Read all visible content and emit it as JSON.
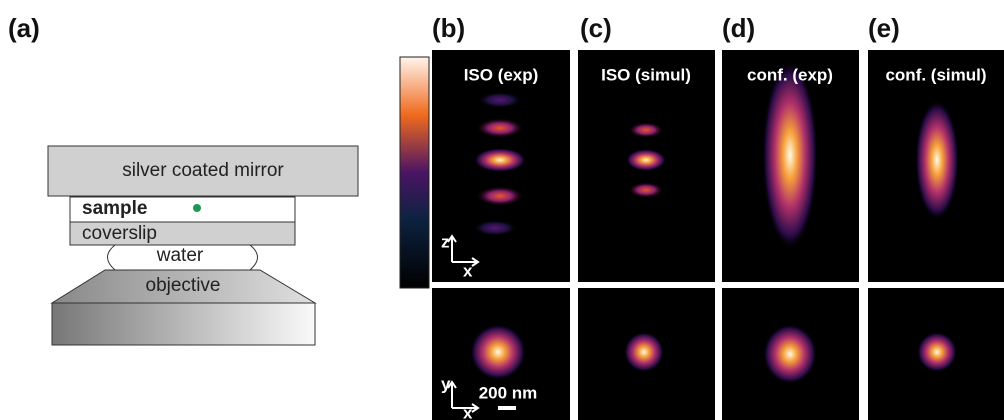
{
  "panels": {
    "labels": [
      "(a)",
      "(b)",
      "(c)",
      "(d)",
      "(e)"
    ],
    "titles": [
      "ISO (exp)",
      "ISO (simul)",
      "conf. (exp)",
      "conf. (simul)"
    ]
  },
  "diagram": {
    "mirror": "silver coated mirror",
    "sample": "sample",
    "coverslip": "coverslip",
    "water": "water",
    "objective": "objective"
  },
  "axes": {
    "top": [
      "z",
      "x"
    ],
    "bottom": [
      "y",
      "x"
    ],
    "scale_bar": "200 nm"
  }
}
